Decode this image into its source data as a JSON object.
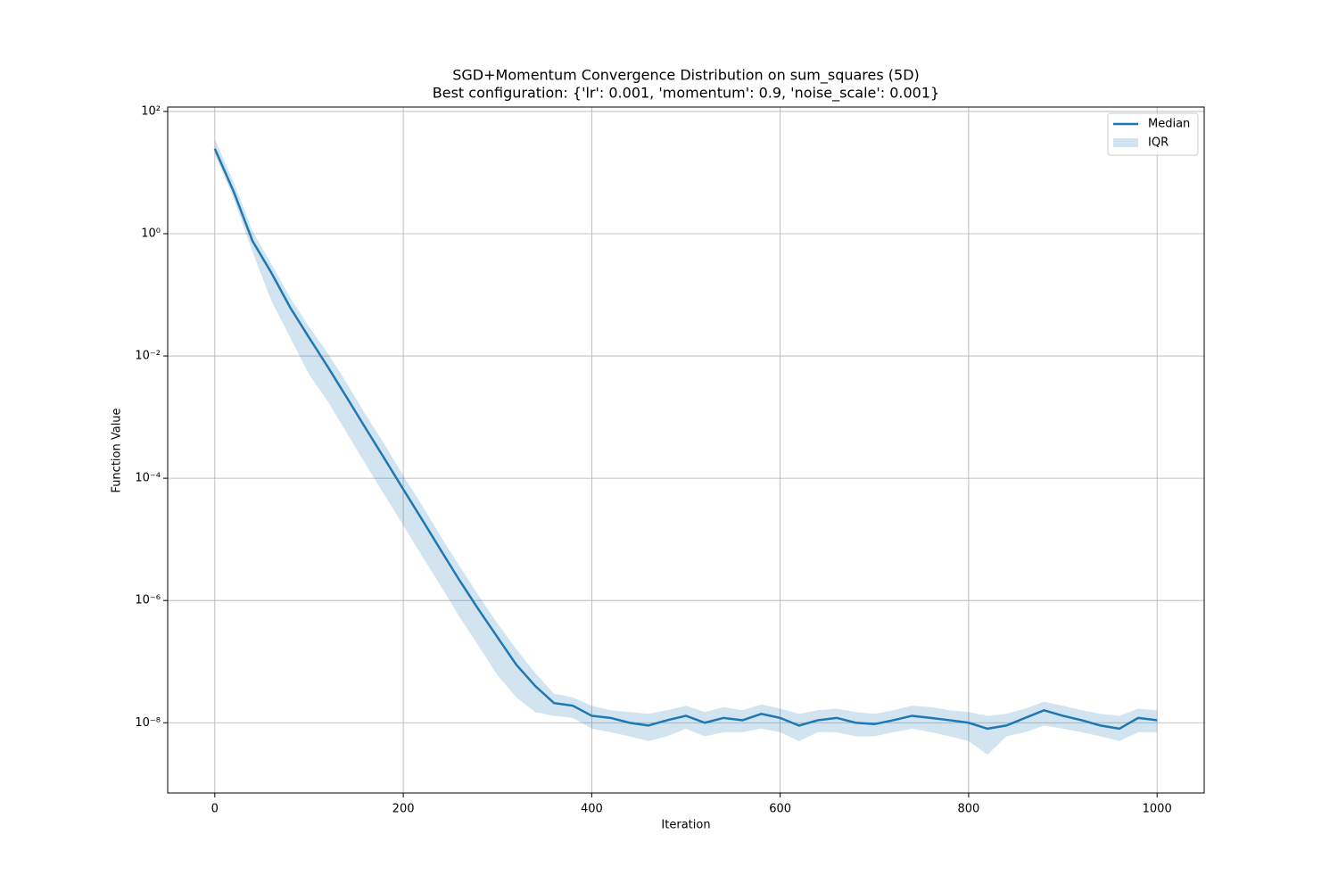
{
  "chart_data": {
    "type": "line",
    "log_y": true,
    "grid": true,
    "legend": "upper right",
    "title": "SGD+Momentum Convergence Distribution on sum_squares (5D)",
    "subtitle": "Best configuration: {'lr': 0.001, 'momentum': 0.9, 'noise_scale': 0.001}",
    "x_label": "Iteration",
    "y_label": "Function Value",
    "xlim": [
      -50,
      1050
    ],
    "xticks": [
      0,
      200,
      400,
      600,
      800,
      1000
    ],
    "ylim": [
      7.1e-10,
      118
    ],
    "yticks": [
      {
        "value": 100,
        "label": "10²"
      },
      {
        "value": 1,
        "label": "10⁰"
      },
      {
        "value": 0.01,
        "label": "10⁻²"
      },
      {
        "value": 0.0001,
        "label": "10⁻⁴"
      },
      {
        "value": 1e-06,
        "label": "10⁻⁶"
      },
      {
        "value": 1e-08,
        "label": "10⁻⁸"
      }
    ],
    "x": [
      0,
      20,
      40,
      60,
      80,
      100,
      120,
      140,
      160,
      180,
      200,
      220,
      240,
      260,
      280,
      300,
      320,
      340,
      360,
      380,
      400,
      420,
      440,
      460,
      480,
      500,
      520,
      540,
      560,
      580,
      600,
      620,
      640,
      660,
      680,
      700,
      720,
      740,
      760,
      780,
      800,
      820,
      840,
      860,
      880,
      900,
      920,
      940,
      960,
      980,
      1000
    ],
    "series": [
      {
        "name": "Median",
        "color": "#1f77b4",
        "values": [
          24.5,
          4.9,
          0.76,
          0.23,
          0.062,
          0.02,
          0.0066,
          0.0021,
          0.00066,
          0.00021,
          6.6e-05,
          2.1e-05,
          6.6e-06,
          2.1e-06,
          7.1e-07,
          2.5e-07,
          8.9e-08,
          4e-08,
          2.1e-08,
          1.9e-08,
          1.3e-08,
          1.2e-08,
          1e-08,
          9e-09,
          1.1e-08,
          1.3e-08,
          1e-08,
          1.2e-08,
          1.1e-08,
          1.4e-08,
          1.2e-08,
          9e-09,
          1.1e-08,
          1.2e-08,
          1e-08,
          9.5e-09,
          1.1e-08,
          1.3e-08,
          1.2e-08,
          1.1e-08,
          1e-08,
          8e-09,
          9e-09,
          1.2e-08,
          1.6e-08,
          1.3e-08,
          1.1e-08,
          9e-09,
          8e-09,
          1.2e-08,
          1.1e-08
        ]
      },
      {
        "name": "IQR",
        "color": "#1f77b4",
        "opacity": 0.2,
        "lower": [
          20,
          3.8,
          0.5,
          0.08,
          0.02,
          0.005,
          0.0018,
          0.00055,
          0.00017,
          5.3e-05,
          1.7e-05,
          5.3e-06,
          1.7e-06,
          5.3e-07,
          1.8e-07,
          6e-08,
          2.6e-08,
          1.5e-08,
          1.3e-08,
          1.2e-08,
          8e-09,
          7e-09,
          6e-09,
          5e-09,
          6e-09,
          8e-09,
          6e-09,
          7e-09,
          7e-09,
          8e-09,
          7e-09,
          5e-09,
          7e-09,
          7e-09,
          6e-09,
          6e-09,
          7e-09,
          8e-09,
          7e-09,
          6e-09,
          5e-09,
          3e-09,
          6e-09,
          7e-09,
          9e-09,
          8e-09,
          7e-09,
          6e-09,
          5e-09,
          7e-09,
          7e-09
        ],
        "upper": [
          35,
          7,
          1.1,
          0.32,
          0.09,
          0.03,
          0.011,
          0.0036,
          0.0011,
          0.00036,
          0.00011,
          3.6e-05,
          1.1e-05,
          3.6e-06,
          1.2e-06,
          4.2e-07,
          1.6e-07,
          6.5e-08,
          3e-08,
          2.6e-08,
          1.9e-08,
          1.6e-08,
          1.5e-08,
          1.4e-08,
          1.6e-08,
          1.9e-08,
          1.5e-08,
          1.8e-08,
          1.6e-08,
          2e-08,
          1.7e-08,
          1.4e-08,
          1.6e-08,
          1.7e-08,
          1.5e-08,
          1.4e-08,
          1.6e-08,
          1.9e-08,
          1.8e-08,
          1.6e-08,
          1.5e-08,
          1.3e-08,
          1.4e-08,
          1.7e-08,
          2.2e-08,
          1.9e-08,
          1.6e-08,
          1.4e-08,
          1.3e-08,
          1.7e-08,
          1.6e-08
        ]
      }
    ]
  }
}
